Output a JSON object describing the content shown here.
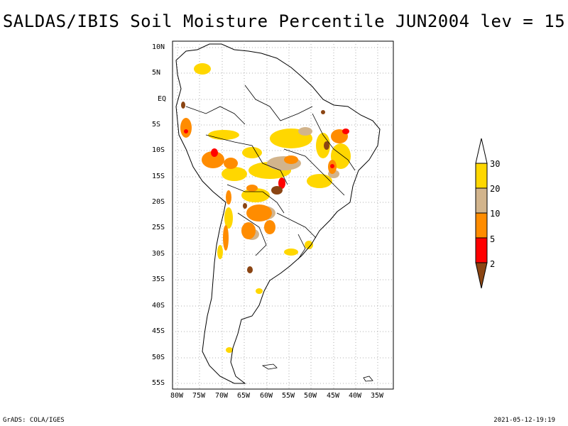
{
  "title": "SALDAS/IBIS Soil Moisture Percentile JUN2004 lev = 15",
  "lat_labels": [
    "10N",
    "5N",
    "EQ",
    "5S",
    "10S",
    "15S",
    "20S",
    "25S",
    "30S",
    "35S",
    "40S",
    "45S",
    "50S",
    "55S"
  ],
  "lon_labels": [
    "80W",
    "75W",
    "70W",
    "65W",
    "60W",
    "55W",
    "50W",
    "45W",
    "40W",
    "35W"
  ],
  "colorbar": {
    "labels": [
      "2",
      "5",
      "10",
      "20",
      "30"
    ],
    "colors": {
      "lt2": "#8b4513",
      "2_5": "#ff0000",
      "5_10": "#ff8c00",
      "10_20": "#d2b48c",
      "20_30": "#ffd700",
      "gt30": "#ffffff"
    }
  },
  "footer": {
    "left": "GrADS: COLA/IGES",
    "right": "2021-05-12-19:19"
  }
}
